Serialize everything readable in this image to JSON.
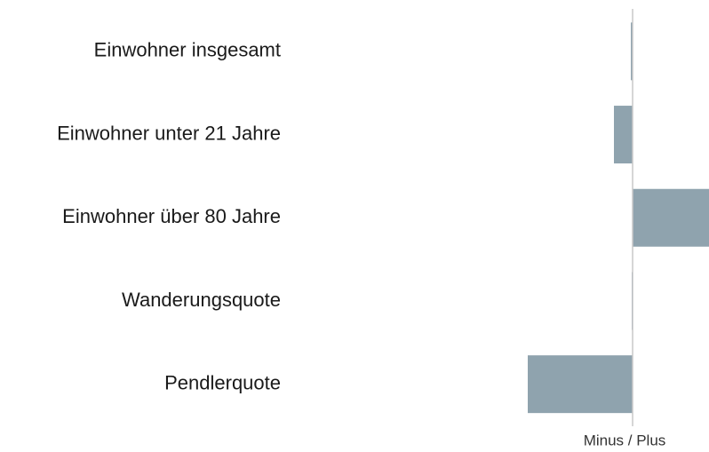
{
  "chart_data": {
    "type": "hbar",
    "categories": [
      "Einwohner insgesamt",
      "Einwohner unter 21 Jahre",
      "Einwohner über 80 Jahre",
      "Wanderungsquote",
      "Pendlerquote"
    ],
    "values": [
      -2,
      -21,
      86,
      -1,
      -118
    ],
    "color": "#8fa3ae",
    "xlim": [
      -140,
      86
    ],
    "x_label": "Minus / Plus"
  }
}
